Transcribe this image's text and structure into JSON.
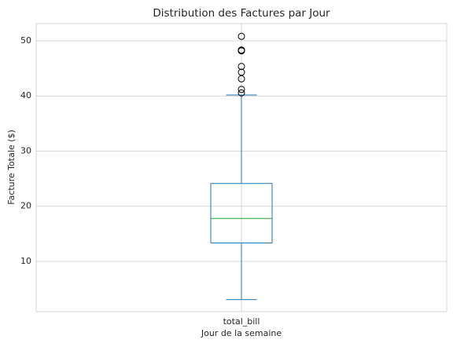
{
  "chart_data": {
    "type": "box",
    "title": "Distribution des Factures par Jour",
    "xlabel": "Jour de la semaine",
    "ylabel": "Facture Totale ($)",
    "categories": [
      "total_bill"
    ],
    "series": [
      {
        "name": "total_bill",
        "color": "#1f77b4",
        "median_color": "#2ca02c",
        "whislo": 3.07,
        "q1": 13.35,
        "med": 17.8,
        "q3": 24.13,
        "whishi": 40.17,
        "fliers": [
          40.55,
          41.19,
          43.11,
          44.3,
          45.35,
          48.17,
          48.27,
          48.33,
          50.81
        ]
      }
    ],
    "ylim": [
      0.89,
      53.13
    ],
    "yticks": [
      10,
      20,
      30,
      40,
      50
    ],
    "grid": true
  }
}
